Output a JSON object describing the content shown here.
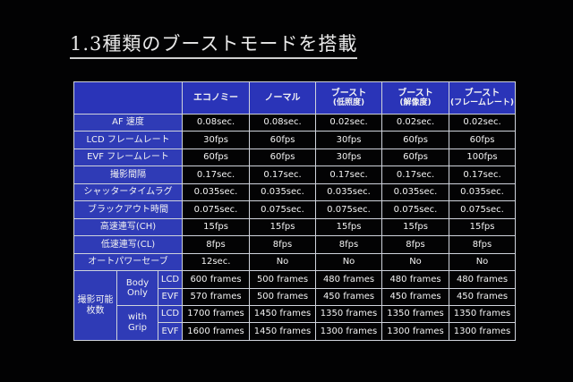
{
  "title": "1.3種類のブーストモードを搭載",
  "columns": [
    {
      "label": "エコノミー",
      "sub": ""
    },
    {
      "label": "ノーマル",
      "sub": ""
    },
    {
      "label": "ブースト",
      "sub": "(低照度)"
    },
    {
      "label": "ブースト",
      "sub": "(解像度)"
    },
    {
      "label": "ブースト",
      "sub": "(フレームレート)"
    }
  ],
  "rows": [
    {
      "label": "AF 速度",
      "cells": [
        {
          "value": "0.08sec.",
          "highlight": true
        },
        {
          "value": "0.08sec.",
          "highlight": true
        },
        {
          "value": "0.02sec.",
          "highlight": true
        },
        {
          "value": "0.02sec.",
          "highlight": true
        },
        {
          "value": "0.02sec.",
          "highlight": true
        }
      ]
    },
    {
      "label": "LCD フレームレート",
      "cells": [
        {
          "value": "30fps",
          "highlight": true
        },
        {
          "value": "60fps",
          "highlight": false
        },
        {
          "value": "30fps",
          "highlight": true
        },
        {
          "value": "60fps",
          "highlight": false
        },
        {
          "value": "60fps",
          "highlight": false
        }
      ]
    },
    {
      "label": "EVF フレームレート",
      "cells": [
        {
          "value": "60fps",
          "highlight": false
        },
        {
          "value": "60fps",
          "highlight": false
        },
        {
          "value": "30fps",
          "highlight": true
        },
        {
          "value": "60fps",
          "highlight": false
        },
        {
          "value": "100fps",
          "highlight": true
        }
      ]
    },
    {
      "label": "撮影間隔",
      "cells": [
        {
          "value": "0.17sec.",
          "highlight": false
        },
        {
          "value": "0.17sec.",
          "highlight": false
        },
        {
          "value": "0.17sec.",
          "highlight": false
        },
        {
          "value": "0.17sec.",
          "highlight": false
        },
        {
          "value": "0.17sec.",
          "highlight": false
        }
      ]
    },
    {
      "label": "シャッタータイムラグ",
      "cells": [
        {
          "value": "0.035sec.",
          "highlight": false
        },
        {
          "value": "0.035sec.",
          "highlight": false
        },
        {
          "value": "0.035sec.",
          "highlight": false
        },
        {
          "value": "0.035sec.",
          "highlight": false
        },
        {
          "value": "0.035sec.",
          "highlight": false
        }
      ]
    },
    {
      "label": "ブラックアウト時間",
      "cells": [
        {
          "value": "0.075sec.",
          "highlight": false
        },
        {
          "value": "0.075sec.",
          "highlight": false
        },
        {
          "value": "0.075sec.",
          "highlight": false
        },
        {
          "value": "0.075sec.",
          "highlight": false
        },
        {
          "value": "0.075sec.",
          "highlight": false
        }
      ]
    },
    {
      "label": "高速連写(CH)",
      "cells": [
        {
          "value": "15fps",
          "highlight": false
        },
        {
          "value": "15fps",
          "highlight": false
        },
        {
          "value": "15fps",
          "highlight": false
        },
        {
          "value": "15fps",
          "highlight": false
        },
        {
          "value": "15fps",
          "highlight": false
        }
      ]
    },
    {
      "label": "低速連写(CL)",
      "cells": [
        {
          "value": "8fps",
          "highlight": false
        },
        {
          "value": "8fps",
          "highlight": false
        },
        {
          "value": "8fps",
          "highlight": false
        },
        {
          "value": "8fps",
          "highlight": false
        },
        {
          "value": "8fps",
          "highlight": false
        }
      ]
    },
    {
      "label": "オートパワーセーブ",
      "cells": [
        {
          "value": "12sec.",
          "highlight": true
        },
        {
          "value": "No",
          "highlight": false
        },
        {
          "value": "No",
          "highlight": false
        },
        {
          "value": "No",
          "highlight": false
        },
        {
          "value": "No",
          "highlight": false
        }
      ]
    }
  ],
  "shots": {
    "label_line1": "撮影可能",
    "label_line2": "枚数",
    "groups": [
      {
        "label_line1": "Body",
        "label_line2": "Only",
        "rows": [
          {
            "display": "LCD",
            "cells": [
              {
                "value": "600 frames",
                "highlight": true
              },
              {
                "value": "500 frames",
                "highlight": false
              },
              {
                "value": "480 frames",
                "highlight": false
              },
              {
                "value": "480 frames",
                "highlight": false
              },
              {
                "value": "480 frames",
                "highlight": false
              }
            ]
          },
          {
            "display": "EVF",
            "cells": [
              {
                "value": "570 frames",
                "highlight": false
              },
              {
                "value": "500 frames",
                "highlight": false
              },
              {
                "value": "450 frames",
                "highlight": false
              },
              {
                "value": "450 frames",
                "highlight": false
              },
              {
                "value": "450 frames",
                "highlight": false
              }
            ]
          }
        ]
      },
      {
        "label_line1": "with",
        "label_line2": "Grip",
        "rows": [
          {
            "display": "LCD",
            "cells": [
              {
                "value": "1700 frames",
                "highlight": true
              },
              {
                "value": "1450 frames",
                "highlight": false
              },
              {
                "value": "1350 frames",
                "highlight": false
              },
              {
                "value": "1350 frames",
                "highlight": false
              },
              {
                "value": "1350 frames",
                "highlight": false
              }
            ]
          },
          {
            "display": "EVF",
            "cells": [
              {
                "value": "1600 frames",
                "highlight": false
              },
              {
                "value": "1450 frames",
                "highlight": false
              },
              {
                "value": "1300 frames",
                "highlight": false
              },
              {
                "value": "1300 frames",
                "highlight": false
              },
              {
                "value": "1300 frames",
                "highlight": false
              }
            ]
          }
        ]
      }
    ]
  },
  "colors": {
    "header_blue": "#2a34b8",
    "highlight_red": "#e4301f",
    "background": "#020203"
  }
}
